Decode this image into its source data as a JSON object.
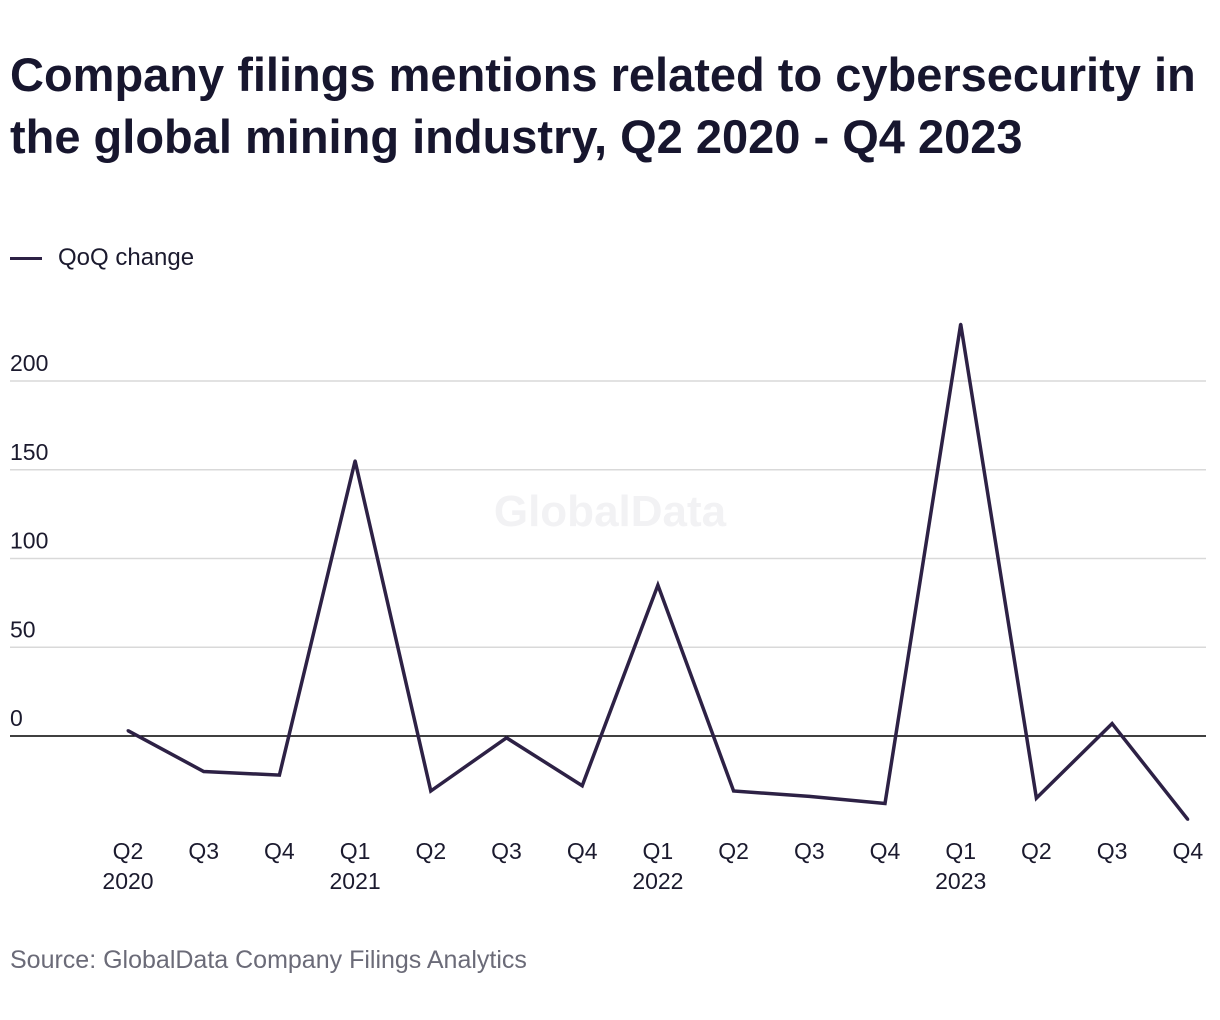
{
  "title": "Company filings mentions related to cybersecurity in the global mining industry, Q2 2020 - Q4 2023",
  "source": "Source: GlobalData Company Filings Analytics",
  "watermark": "GlobalData",
  "colors": {
    "line": "#2d2145",
    "grid": "#d9d9d9",
    "zero_line": "#000000",
    "text": "#1b1a2e"
  },
  "chart_data": {
    "type": "line",
    "title": "Company filings mentions related to cybersecurity in the global mining industry, Q2 2020 - Q4 2023",
    "xlabel": "",
    "ylabel": "",
    "categories": [
      "Q2 2020",
      "Q3 2020",
      "Q4 2020",
      "Q1 2021",
      "Q2 2021",
      "Q3 2021",
      "Q4 2021",
      "Q1 2022",
      "Q2 2022",
      "Q3 2022",
      "Q4 2022",
      "Q1 2023",
      "Q2 2023",
      "Q3 2023",
      "Q4 2023"
    ],
    "x_tick_labels": [
      {
        "quarter": "Q2",
        "year": "2020"
      },
      {
        "quarter": "Q3",
        "year": ""
      },
      {
        "quarter": "Q4",
        "year": ""
      },
      {
        "quarter": "Q1",
        "year": "2021"
      },
      {
        "quarter": "Q2",
        "year": ""
      },
      {
        "quarter": "Q3",
        "year": ""
      },
      {
        "quarter": "Q4",
        "year": ""
      },
      {
        "quarter": "Q1",
        "year": "2022"
      },
      {
        "quarter": "Q2",
        "year": ""
      },
      {
        "quarter": "Q3",
        "year": ""
      },
      {
        "quarter": "Q4",
        "year": ""
      },
      {
        "quarter": "Q1",
        "year": "2023"
      },
      {
        "quarter": "Q2",
        "year": ""
      },
      {
        "quarter": "Q3",
        "year": ""
      },
      {
        "quarter": "Q4",
        "year": ""
      }
    ],
    "series": [
      {
        "name": "QoQ change",
        "values": [
          3,
          -20,
          -22,
          155,
          -31,
          -1,
          -28,
          85,
          -31,
          -34,
          -38,
          232,
          -35,
          7,
          -47
        ]
      }
    ],
    "y_ticks": [
      0,
      50,
      100,
      150,
      200
    ],
    "ylim": [
      -50,
      240
    ],
    "grid": true,
    "legend_position": "top-left"
  }
}
